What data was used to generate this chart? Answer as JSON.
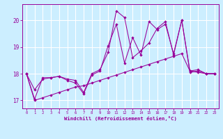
{
  "background_color": "#cceeff",
  "grid_color": "#ffffff",
  "line_color": "#990099",
  "xlabel": "Windchill (Refroidissement éolien,°C)",
  "xlim": [
    -0.5,
    23.5
  ],
  "ylim": [
    16.7,
    20.6
  ],
  "yticks": [
    17,
    18,
    19,
    20
  ],
  "xticks": [
    0,
    1,
    2,
    3,
    4,
    5,
    6,
    7,
    8,
    9,
    10,
    11,
    12,
    13,
    14,
    15,
    16,
    17,
    18,
    19,
    20,
    21,
    22,
    23
  ],
  "series1_x": [
    0,
    1,
    2,
    3,
    4,
    5,
    6,
    7,
    8,
    9,
    10,
    11,
    12,
    13,
    14,
    15,
    16,
    17,
    18,
    19,
    20,
    21,
    22,
    23
  ],
  "series1_y": [
    18.0,
    17.4,
    17.8,
    17.85,
    17.9,
    17.8,
    17.75,
    17.3,
    18.0,
    18.15,
    18.8,
    20.35,
    20.1,
    18.6,
    18.85,
    19.15,
    19.7,
    19.95,
    18.7,
    20.0,
    18.05,
    18.1,
    18.0,
    18.0
  ],
  "series2_x": [
    0,
    1,
    2,
    3,
    4,
    5,
    6,
    7,
    8,
    9,
    10,
    11,
    12,
    13,
    14,
    15,
    16,
    17,
    18,
    19,
    20,
    21,
    22,
    23
  ],
  "series2_y": [
    18.0,
    17.05,
    17.85,
    17.85,
    17.9,
    17.75,
    17.65,
    17.25,
    17.95,
    18.1,
    19.05,
    19.85,
    18.4,
    19.35,
    18.7,
    19.95,
    19.65,
    19.85,
    18.75,
    20.0,
    18.1,
    18.15,
    18.0,
    18.0
  ],
  "series3_x": [
    0,
    1,
    2,
    3,
    4,
    5,
    6,
    7,
    8,
    9,
    10,
    11,
    12,
    13,
    14,
    15,
    16,
    17,
    18,
    19,
    20,
    21,
    22,
    23
  ],
  "series3_y": [
    18.0,
    17.0,
    17.1,
    17.2,
    17.3,
    17.4,
    17.5,
    17.55,
    17.65,
    17.75,
    17.85,
    17.95,
    18.05,
    18.15,
    18.25,
    18.35,
    18.45,
    18.55,
    18.65,
    18.75,
    18.1,
    18.05,
    18.0,
    18.0
  ]
}
